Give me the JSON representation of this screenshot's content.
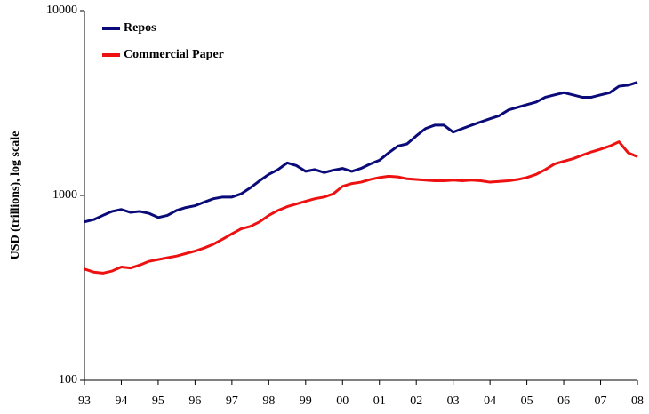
{
  "chart_data": {
    "type": "line",
    "ylabel": "USD (trillions), log scale",
    "x": [
      1993,
      1993.25,
      1993.5,
      1993.75,
      1994,
      1994.25,
      1994.5,
      1994.75,
      1995,
      1995.25,
      1995.5,
      1995.75,
      1996,
      1996.25,
      1996.5,
      1996.75,
      1997,
      1997.25,
      1997.5,
      1997.75,
      1998,
      1998.25,
      1998.5,
      1998.75,
      1999,
      1999.25,
      1999.5,
      1999.75,
      2000,
      2000.25,
      2000.5,
      2000.75,
      2001,
      2001.25,
      2001.5,
      2001.75,
      2002,
      2002.25,
      2002.5,
      2002.75,
      2003,
      2003.25,
      2003.5,
      2003.75,
      2004,
      2004.25,
      2004.5,
      2004.75,
      2005,
      2005.25,
      2005.5,
      2005.75,
      2006,
      2006.25,
      2006.5,
      2006.75,
      2007,
      2007.25,
      2007.5,
      2007.75,
      2008
    ],
    "series": [
      {
        "name": "Repos",
        "color": "#0a0a78",
        "values": [
          720,
          740,
          780,
          820,
          840,
          810,
          820,
          800,
          760,
          780,
          830,
          860,
          880,
          920,
          960,
          980,
          980,
          1020,
          1100,
          1200,
          1300,
          1380,
          1500,
          1450,
          1350,
          1380,
          1330,
          1370,
          1400,
          1350,
          1400,
          1480,
          1550,
          1700,
          1850,
          1900,
          2100,
          2300,
          2400,
          2400,
          2200,
          2300,
          2400,
          2500,
          2600,
          2700,
          2900,
          3000,
          3100,
          3200,
          3400,
          3500,
          3600,
          3500,
          3400,
          3400,
          3500,
          3600,
          3900,
          3950,
          4100
        ]
      },
      {
        "name": "Commercial Paper",
        "color": "#ee1111",
        "values": [
          400,
          385,
          380,
          390,
          410,
          405,
          420,
          440,
          450,
          460,
          470,
          485,
          500,
          520,
          545,
          580,
          620,
          660,
          680,
          720,
          780,
          830,
          870,
          900,
          930,
          960,
          980,
          1020,
          1120,
          1160,
          1180,
          1220,
          1250,
          1270,
          1260,
          1230,
          1220,
          1210,
          1200,
          1200,
          1210,
          1200,
          1210,
          1200,
          1180,
          1190,
          1200,
          1220,
          1250,
          1300,
          1380,
          1480,
          1530,
          1580,
          1650,
          1720,
          1780,
          1850,
          1950,
          1700,
          1620
        ]
      }
    ],
    "log_y": true,
    "ylim": [
      100,
      10000
    ],
    "yticks": [
      100,
      1000,
      10000
    ],
    "xlim": [
      1993,
      2008
    ],
    "xticks": [
      {
        "value": 1993,
        "label": "93"
      },
      {
        "value": 1994,
        "label": "94"
      },
      {
        "value": 1995,
        "label": "95"
      },
      {
        "value": 1996,
        "label": "96"
      },
      {
        "value": 1997,
        "label": "97"
      },
      {
        "value": 1998,
        "label": "98"
      },
      {
        "value": 1999,
        "label": "99"
      },
      {
        "value": 2000,
        "label": "00"
      },
      {
        "value": 2001,
        "label": "01"
      },
      {
        "value": 2002,
        "label": "02"
      },
      {
        "value": 2003,
        "label": "03"
      },
      {
        "value": 2004,
        "label": "04"
      },
      {
        "value": 2005,
        "label": "05"
      },
      {
        "value": 2006,
        "label": "06"
      },
      {
        "value": 2007,
        "label": "07"
      },
      {
        "value": 2008,
        "label": "08"
      }
    ],
    "legend": "upper left"
  }
}
